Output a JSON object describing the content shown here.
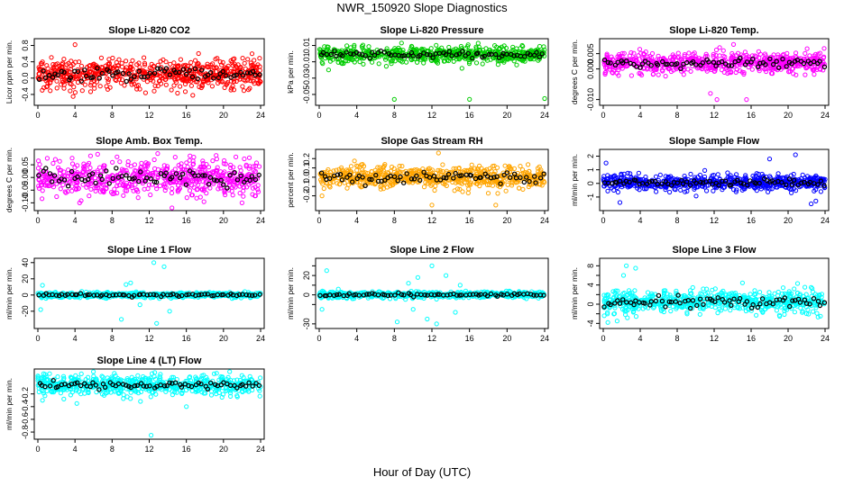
{
  "page": {
    "title": "NWR_150920  Slope Diagnostics",
    "xlabel": "Hour of Day (UTC)"
  },
  "colors": {
    "red": "#ff0000",
    "green": "#00cc00",
    "magenta": "#ff00ff",
    "orange": "#ffa500",
    "blue": "#0000ff",
    "cyan": "#00ffff",
    "black": "#000000"
  },
  "chart_data": [
    {
      "type": "scatter",
      "title": "Slope Li-820 CO2",
      "ylabel": "Licor ppm per min.",
      "xlim": [
        0,
        24
      ],
      "ylim": [
        -0.6,
        0.9
      ],
      "yticks": [
        -0.4,
        0,
        0.4,
        0.8
      ],
      "ytick_labels": [
        "-0.4",
        "0.0",
        "0.4",
        "0.8"
      ],
      "xticks": [
        0,
        4,
        8,
        12,
        16,
        20,
        24
      ],
      "color": "red",
      "center": 0.1,
      "spread": 0.18,
      "outliers": [
        [
          4.0,
          0.82
        ],
        [
          3.8,
          -0.45
        ],
        [
          0.5,
          0.4
        ],
        [
          13.5,
          0.45
        ],
        [
          10.2,
          0.43
        ],
        [
          11.6,
          -0.36
        ]
      ]
    },
    {
      "type": "scatter",
      "title": "Slope Li-820 Pressure",
      "ylabel": "kPa per min.",
      "xlim": [
        0,
        24
      ],
      "ylim": [
        -0.06,
        0.015
      ],
      "yticks": [
        -0.05,
        -0.03,
        -0.01,
        0.01
      ],
      "ytick_labels": [
        "-0.05",
        "-0.03",
        "-0.01",
        "0.01"
      ],
      "xticks": [
        0,
        4,
        8,
        12,
        16,
        20,
        24
      ],
      "color": "green",
      "center": -0.001,
      "spread": 0.005,
      "outliers": [
        [
          8.0,
          -0.056
        ],
        [
          16.0,
          -0.056
        ],
        [
          24.0,
          -0.055
        ],
        [
          1.0,
          -0.02
        ],
        [
          15.2,
          -0.018
        ]
      ]
    },
    {
      "type": "scatter",
      "title": "Slope Li-820 Temp.",
      "ylabel": "degrees C per min.",
      "xlim": [
        0,
        24
      ],
      "ylim": [
        -0.011,
        0.009
      ],
      "yticks": [
        -0.01,
        0,
        0.005
      ],
      "ytick_labels": [
        "-0.010",
        "0.000",
        "0.005"
      ],
      "xticks": [
        0,
        4,
        8,
        12,
        16,
        20,
        24
      ],
      "color": "magenta",
      "center": 0.002,
      "spread": 0.0017,
      "outliers": [
        [
          12.3,
          -0.01
        ],
        [
          15.5,
          -0.01
        ],
        [
          11.6,
          -0.008
        ],
        [
          14.1,
          0.008
        ],
        [
          12.6,
          0.007
        ],
        [
          13.0,
          0.006
        ]
      ]
    },
    {
      "type": "scatter",
      "title": "Slope Amb. Box Temp.",
      "ylabel": "degrees C per min.",
      "xlim": [
        0,
        24
      ],
      "ylim": [
        -0.12,
        0.1
      ],
      "yticks": [
        -0.1,
        -0.05,
        0,
        0.05
      ],
      "ytick_labels": [
        "-0.10",
        "-0.05",
        "0.00",
        "0.05"
      ],
      "xticks": [
        0,
        4,
        8,
        12,
        16,
        20,
        24
      ],
      "color": "magenta",
      "center": 0.0,
      "spread": 0.035,
      "outliers": [
        [
          22.0,
          -0.1
        ],
        [
          14.8,
          0.08
        ],
        [
          4.5,
          -0.1
        ],
        [
          16.8,
          0.08
        ]
      ]
    },
    {
      "type": "scatter",
      "title": "Slope Gas Stream RH",
      "ylabel": "percent per min.",
      "xlim": [
        0,
        24
      ],
      "ylim": [
        -0.33,
        0.27
      ],
      "yticks": [
        -0.2,
        -0.1,
        0,
        0.1,
        0.2
      ],
      "ytick_labels": [
        "-0.2",
        "-0.1",
        "0.0",
        "0.1",
        "0.2"
      ],
      "xticks": [
        0,
        4,
        8,
        12,
        16,
        20,
        24
      ],
      "color": "orange",
      "center": 0.0,
      "spread": 0.06,
      "outliers": [
        [
          12.7,
          0.26
        ],
        [
          12.0,
          -0.3
        ],
        [
          18.8,
          -0.3
        ],
        [
          0.3,
          -0.2
        ]
      ]
    },
    {
      "type": "scatter",
      "title": "Slope Sample Flow",
      "ylabel": "ml/min per min.",
      "xlim": [
        0,
        24
      ],
      "ylim": [
        -1.8,
        2.3
      ],
      "yticks": [
        -1,
        0,
        1,
        2
      ],
      "ytick_labels": [
        "-1",
        "0",
        "1",
        "2"
      ],
      "xticks": [
        0,
        4,
        8,
        12,
        16,
        20,
        24
      ],
      "color": "blue",
      "center": 0.05,
      "spread": 0.28,
      "outliers": [
        [
          20.8,
          2.1
        ],
        [
          18.0,
          1.8
        ],
        [
          22.5,
          -1.5
        ],
        [
          23.0,
          -1.3
        ],
        [
          1.8,
          -1.4
        ],
        [
          0.3,
          1.5
        ]
      ]
    },
    {
      "type": "scatter",
      "title": "Slope Line 1 Flow",
      "ylabel": "ml/min per min.",
      "xlim": [
        0,
        24
      ],
      "ylim": [
        -38,
        42
      ],
      "yticks": [
        -20,
        0,
        20,
        40
      ],
      "ytick_labels": [
        "-20",
        "0",
        "20",
        "40"
      ],
      "xticks": [
        0,
        4,
        8,
        12,
        16,
        20,
        24
      ],
      "color": "cyan",
      "center": 0.0,
      "spread": 1.6,
      "outliers": [
        [
          0.3,
          -18
        ],
        [
          0.5,
          12
        ],
        [
          9.0,
          -30
        ],
        [
          10.0,
          15
        ],
        [
          12.5,
          40
        ],
        [
          12.8,
          -35
        ],
        [
          13.6,
          35
        ],
        [
          14.2,
          -20
        ],
        [
          11.0,
          -12
        ],
        [
          9.5,
          13
        ]
      ]
    },
    {
      "type": "scatter",
      "title": "Slope Line 2 Flow",
      "ylabel": "ml/min per min.",
      "xlim": [
        0,
        24
      ],
      "ylim": [
        -32,
        35
      ],
      "yticks": [
        -30,
        -10,
        0,
        10,
        20,
        30
      ],
      "ytick_labels": [
        "-30",
        "",
        "0",
        "",
        "20",
        ""
      ],
      "xticks": [
        0,
        4,
        8,
        12,
        16,
        20,
        24
      ],
      "color": "cyan",
      "center": 0.0,
      "spread": 1.6,
      "outliers": [
        [
          0.3,
          -15
        ],
        [
          0.8,
          25
        ],
        [
          8.3,
          -28
        ],
        [
          9.5,
          12
        ],
        [
          10.5,
          18
        ],
        [
          11.5,
          -25
        ],
        [
          12.0,
          30
        ],
        [
          12.5,
          -30
        ],
        [
          13.5,
          20
        ],
        [
          14.5,
          -18
        ],
        [
          15.0,
          10
        ],
        [
          10.0,
          -15
        ]
      ]
    },
    {
      "type": "scatter",
      "title": "Slope Line 3 Flow",
      "ylabel": "ml/min per min.",
      "xlim": [
        0,
        24
      ],
      "ylim": [
        -4.5,
        9
      ],
      "yticks": [
        -4,
        -2,
        0,
        2,
        4,
        6,
        8
      ],
      "ytick_labels": [
        "-4",
        "",
        "0",
        "",
        "4",
        "",
        "8"
      ],
      "xticks": [
        0,
        4,
        8,
        12,
        16,
        20,
        24
      ],
      "color": "cyan",
      "center": 0.5,
      "spread": 1.2,
      "outliers": [
        [
          2.5,
          8
        ],
        [
          3.5,
          7.5
        ],
        [
          2.2,
          6
        ],
        [
          0.5,
          -3.8
        ],
        [
          1.5,
          -3.5
        ],
        [
          23.5,
          -2.5
        ],
        [
          22.5,
          3.5
        ]
      ]
    },
    {
      "type": "scatter",
      "title": "Slope Line 4 (LT) Flow",
      "ylabel": "ml/min per min.",
      "xlim": [
        0,
        24
      ],
      "ylim": [
        -0.87,
        0.15
      ],
      "yticks": [
        -0.8,
        -0.6,
        -0.4,
        -0.2
      ],
      "ytick_labels": [
        "-0.8",
        "-0.6",
        "-0.4",
        "-0.2"
      ],
      "xticks": [
        0,
        4,
        8,
        12,
        16,
        20,
        24
      ],
      "color": "cyan",
      "center": -0.06,
      "spread": 0.07,
      "outliers": [
        [
          12.2,
          -0.85
        ],
        [
          16.0,
          -0.4
        ],
        [
          4.2,
          -0.35
        ],
        [
          0.5,
          -0.3
        ],
        [
          2.8,
          -0.28
        ],
        [
          12.3,
          0.12
        ]
      ]
    }
  ]
}
